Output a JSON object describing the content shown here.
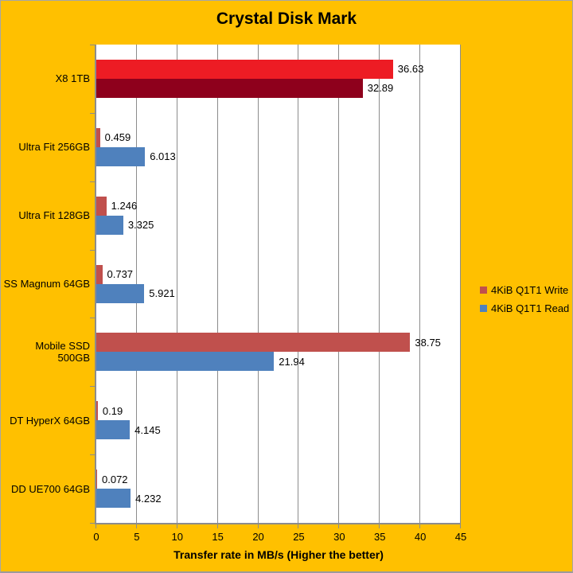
{
  "chart_data": {
    "type": "bar",
    "orientation": "horizontal",
    "title": "Crystal Disk Mark",
    "xlabel": "Transfer rate in MB/s (Higher the better)",
    "xlim": [
      0,
      45
    ],
    "xticks": [
      0,
      5,
      10,
      15,
      20,
      25,
      30,
      35,
      40,
      45
    ],
    "grid": true,
    "legend_position": "right",
    "categories": [
      "X8 1TB",
      "Ultra Fit 256GB",
      "Ultra Fit 128GB",
      "SS Magnum 64GB",
      "Mobile SSD 500GB",
      "DT HyperX 64GB",
      "DD UE700 64GB"
    ],
    "series": [
      {
        "name": "4KiB Q1T1 Write",
        "values": [
          36.63,
          0.459,
          1.246,
          0.737,
          38.75,
          0.19,
          0.072
        ],
        "labels": [
          "36.63",
          "0.459",
          "1.246",
          "0.737",
          "38.75",
          "0.19",
          "0.072"
        ],
        "colors": [
          "#ED1C24",
          "#C0504D",
          "#C0504D",
          "#C0504D",
          "#C0504D",
          "#C0504D",
          "#C0504D"
        ]
      },
      {
        "name": "4KiB Q1T1 Read",
        "values": [
          32.89,
          6.013,
          3.325,
          5.921,
          21.94,
          4.145,
          4.232
        ],
        "labels": [
          "32.89",
          "6.013",
          "3.325",
          "5.921",
          "21.94",
          "4.145",
          "4.232"
        ],
        "colors": [
          "#8E001C",
          "#4F81BD",
          "#4F81BD",
          "#4F81BD",
          "#4F81BD",
          "#4F81BD",
          "#4F81BD"
        ]
      }
    ],
    "highlight_category": "X8 1TB"
  },
  "legend": {
    "items": [
      {
        "label": "4KiB Q1T1 Write",
        "color": "#C0504D"
      },
      {
        "label": "4KiB Q1T1 Read",
        "color": "#4F81BD"
      }
    ]
  },
  "colors": {
    "background": "#FFC000",
    "plot_background": "#FFFFFF",
    "gridline": "#8C8C8C",
    "axis": "#8C8C8C",
    "text": "#000000",
    "frame_border": "#A6A6A6"
  }
}
